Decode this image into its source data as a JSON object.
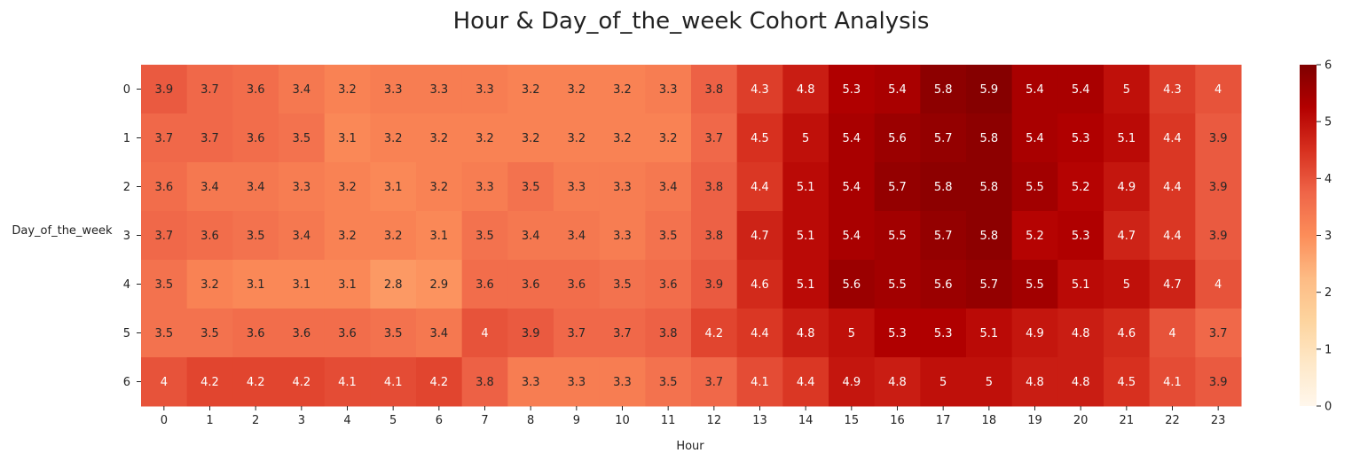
{
  "chart_data": {
    "type": "heatmap",
    "title": "Hour & Day_of_the_week Cohort Analysis",
    "xlabel": "Hour",
    "ylabel": "Day_of_the_week",
    "x_categories": [
      "0",
      "1",
      "2",
      "3",
      "4",
      "5",
      "6",
      "7",
      "8",
      "9",
      "10",
      "11",
      "12",
      "13",
      "14",
      "15",
      "16",
      "17",
      "18",
      "19",
      "20",
      "21",
      "22",
      "23"
    ],
    "y_categories": [
      "0",
      "1",
      "2",
      "3",
      "4",
      "5",
      "6"
    ],
    "values": [
      [
        3.9,
        3.7,
        3.6,
        3.4,
        3.2,
        3.3,
        3.3,
        3.3,
        3.2,
        3.2,
        3.2,
        3.3,
        3.8,
        4.3,
        4.8,
        5.3,
        5.4,
        5.8,
        5.9,
        5.4,
        5.4,
        5,
        4.3,
        4
      ],
      [
        3.7,
        3.7,
        3.6,
        3.5,
        3.1,
        3.2,
        3.2,
        3.2,
        3.2,
        3.2,
        3.2,
        3.2,
        3.7,
        4.5,
        5,
        5.4,
        5.6,
        5.7,
        5.8,
        5.4,
        5.3,
        5.1,
        4.4,
        3.9
      ],
      [
        3.6,
        3.4,
        3.4,
        3.3,
        3.2,
        3.1,
        3.2,
        3.3,
        3.5,
        3.3,
        3.3,
        3.4,
        3.8,
        4.4,
        5.1,
        5.4,
        5.7,
        5.8,
        5.8,
        5.5,
        5.2,
        4.9,
        4.4,
        3.9
      ],
      [
        3.7,
        3.6,
        3.5,
        3.4,
        3.2,
        3.2,
        3.1,
        3.5,
        3.4,
        3.4,
        3.3,
        3.5,
        3.8,
        4.7,
        5.1,
        5.4,
        5.5,
        5.7,
        5.8,
        5.2,
        5.3,
        4.7,
        4.4,
        3.9
      ],
      [
        3.5,
        3.2,
        3.1,
        3.1,
        3.1,
        2.8,
        2.9,
        3.6,
        3.6,
        3.6,
        3.5,
        3.6,
        3.9,
        4.6,
        5.1,
        5.6,
        5.5,
        5.6,
        5.7,
        5.5,
        5.1,
        5,
        4.7,
        4
      ],
      [
        3.5,
        3.5,
        3.6,
        3.6,
        3.6,
        3.5,
        3.4,
        4,
        3.9,
        3.7,
        3.7,
        3.8,
        4.2,
        4.4,
        4.8,
        5,
        5.3,
        5.3,
        5.1,
        4.9,
        4.8,
        4.6,
        4,
        3.7
      ],
      [
        4,
        4.2,
        4.2,
        4.2,
        4.1,
        4.1,
        4.2,
        3.8,
        3.3,
        3.3,
        3.3,
        3.5,
        3.7,
        4.1,
        4.4,
        4.9,
        4.8,
        5,
        5,
        4.8,
        4.8,
        4.5,
        4.1,
        3.9
      ]
    ],
    "colorbar": {
      "min": 0,
      "max": 6,
      "ticks": [
        "0",
        "1",
        "2",
        "3",
        "4",
        "5",
        "6"
      ]
    },
    "colormap": "OrRd",
    "colors": [
      "#fff7ec",
      "#fee8c8",
      "#fdd49e",
      "#fdbb84",
      "#fc8d59",
      "#ef6548",
      "#d7301f",
      "#b30000",
      "#7f0000"
    ],
    "annotations": true,
    "grid": false
  }
}
